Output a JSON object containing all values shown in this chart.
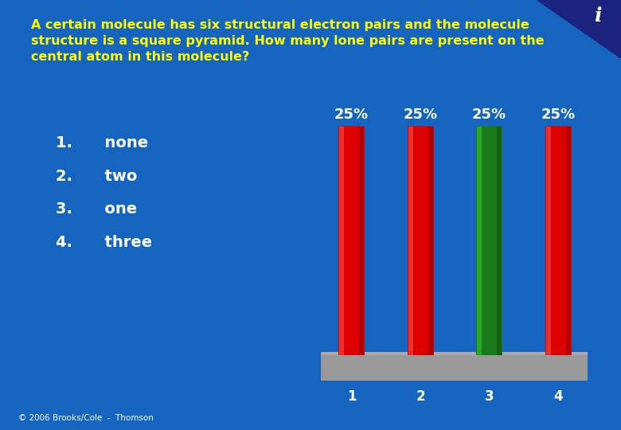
{
  "title_line1": "A certain molecule has six structural electron pairs and the molecule",
  "title_line2": "structure is a square pyramid. How many lone pairs are present on the",
  "title_line3": "central atom in this molecule?",
  "title_color": "#FFFF00",
  "title_fontsize": 11.5,
  "background_color": "#1565C0",
  "choices": [
    "1.      none",
    "2.      two",
    "3.      one",
    "4.      three"
  ],
  "choices_color": "#FFFFFF",
  "choices_fontsize": 14,
  "categories": [
    "1",
    "2",
    "3",
    "4"
  ],
  "values": [
    25,
    25,
    25,
    25
  ],
  "bar_colors": [
    "#DD0000",
    "#DD0000",
    "#1A7A1A",
    "#DD0000"
  ],
  "bar_labels": [
    "25%",
    "25%",
    "25%",
    "25%"
  ],
  "bar_label_color": "#FFFFFF",
  "bar_label_fontsize": 13,
  "xtick_color": "#FFFFFF",
  "xtick_fontsize": 12,
  "platform_color": "#999999",
  "footer": "© 2006 Brooks/Cole  -  Thomson",
  "footer_color": "#FFFFFF",
  "footer_fontsize": 7.5
}
